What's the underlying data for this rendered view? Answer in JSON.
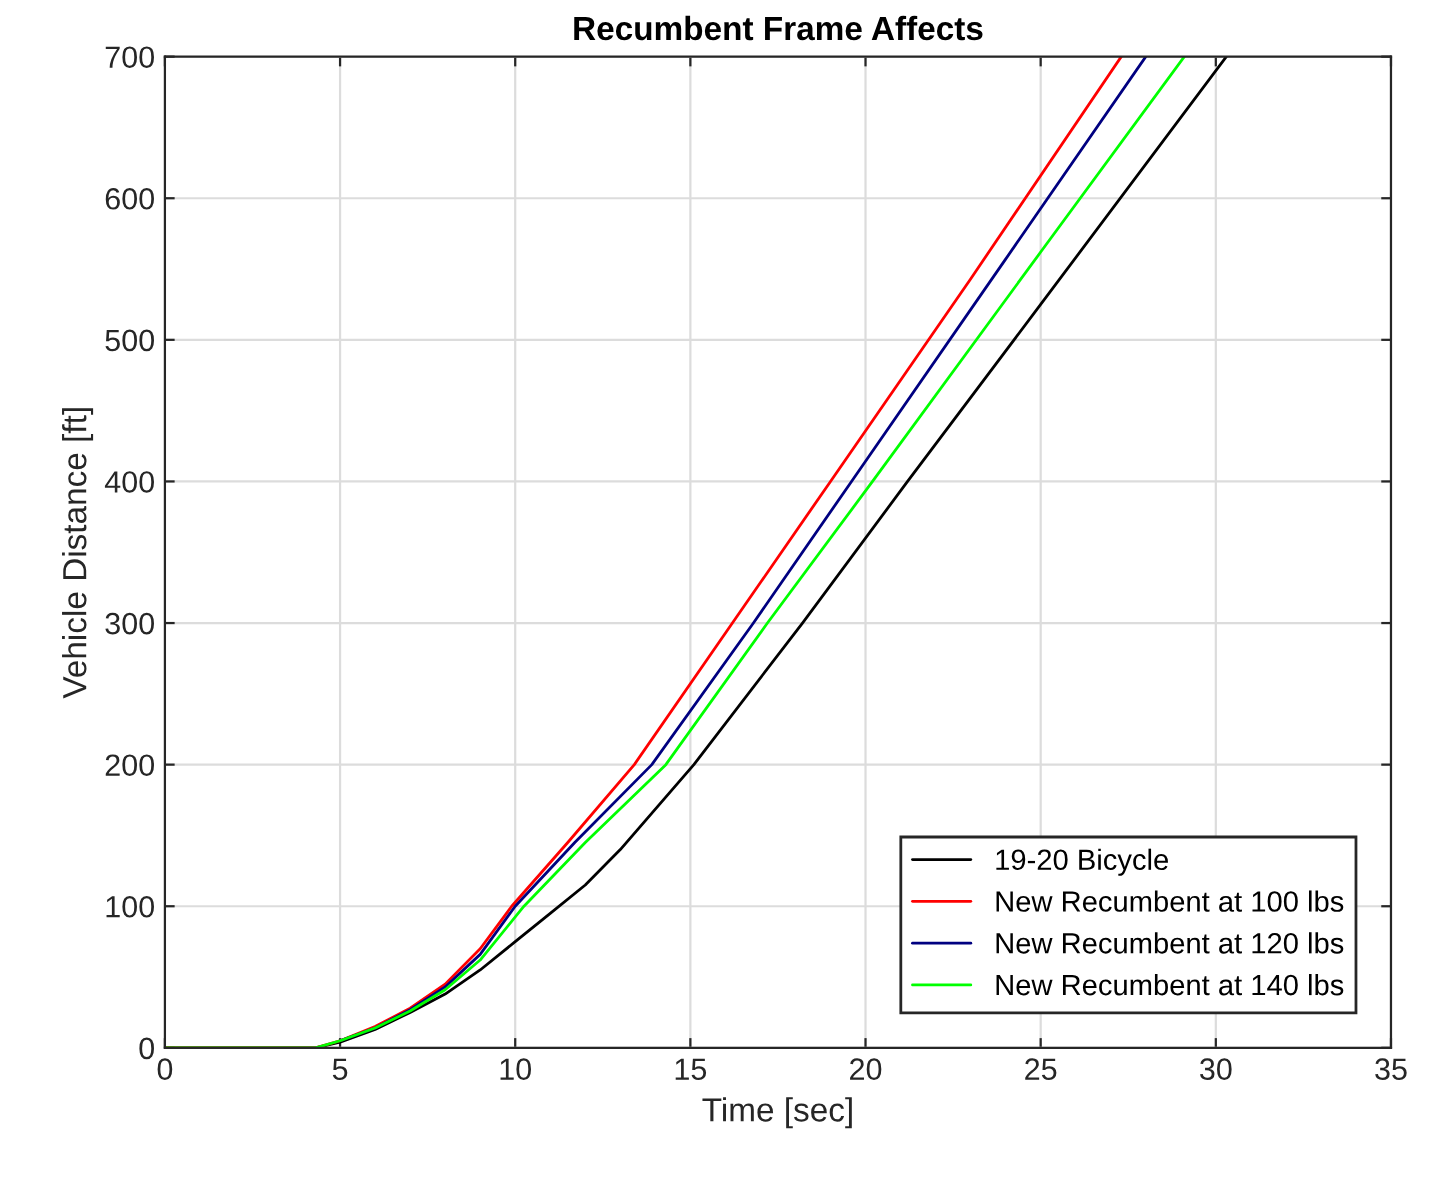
{
  "chart_data": {
    "type": "line",
    "title": "Recumbent Frame Affects",
    "xlabel": "Time [sec]",
    "ylabel": "Vehicle Distance [ft]",
    "series": [
      {
        "name": "19-20 Bicycle",
        "color": "#000000",
        "x": [
          0,
          4.3,
          5,
          6,
          7,
          8,
          9,
          10,
          11,
          12,
          13,
          15.1,
          18.2,
          21.2,
          25,
          30.3
        ],
        "values": [
          0,
          0,
          4,
          13,
          25,
          38,
          55,
          75,
          95,
          115,
          140,
          200,
          300,
          400,
          525,
          700
        ]
      },
      {
        "name": "New Recumbent at 100 lbs",
        "color": "#ff0000",
        "x": [
          0,
          4.3,
          5,
          6,
          7,
          8,
          9,
          9.9,
          11.5,
          13.4,
          16.2,
          19.0,
          23,
          27.3
        ],
        "values": [
          0,
          0,
          5,
          15,
          28,
          45,
          70,
          100,
          145,
          200,
          300,
          400,
          543,
          700
        ]
      },
      {
        "name": "New Recumbent at 120 lbs",
        "color": "#000080",
        "x": [
          5,
          6,
          7,
          8,
          9,
          10,
          11.7,
          13.9,
          16.8,
          19.6,
          24,
          28
        ],
        "values": [
          5,
          14,
          27,
          43,
          66,
          100,
          145,
          200,
          300,
          400,
          557,
          700
        ]
      },
      {
        "name": "New Recumbent at 140 lbs",
        "color": "#00ff00",
        "x": [
          0,
          4.3,
          5,
          6,
          7,
          8,
          9,
          10.25,
          12,
          14.3,
          17.2,
          20.2,
          25,
          29.1
        ],
        "values": [
          0,
          0,
          5,
          14,
          26,
          41,
          62,
          100,
          145,
          200,
          300,
          400,
          562,
          700
        ]
      }
    ],
    "xlim": [
      0,
      35
    ],
    "xticks": [
      0,
      5,
      10,
      15,
      20,
      25,
      30,
      35
    ],
    "ylim": [
      0,
      700
    ],
    "yticks": [
      0,
      100,
      200,
      300,
      400,
      500,
      600,
      700
    ],
    "grid": true,
    "legend": "bottom right"
  }
}
